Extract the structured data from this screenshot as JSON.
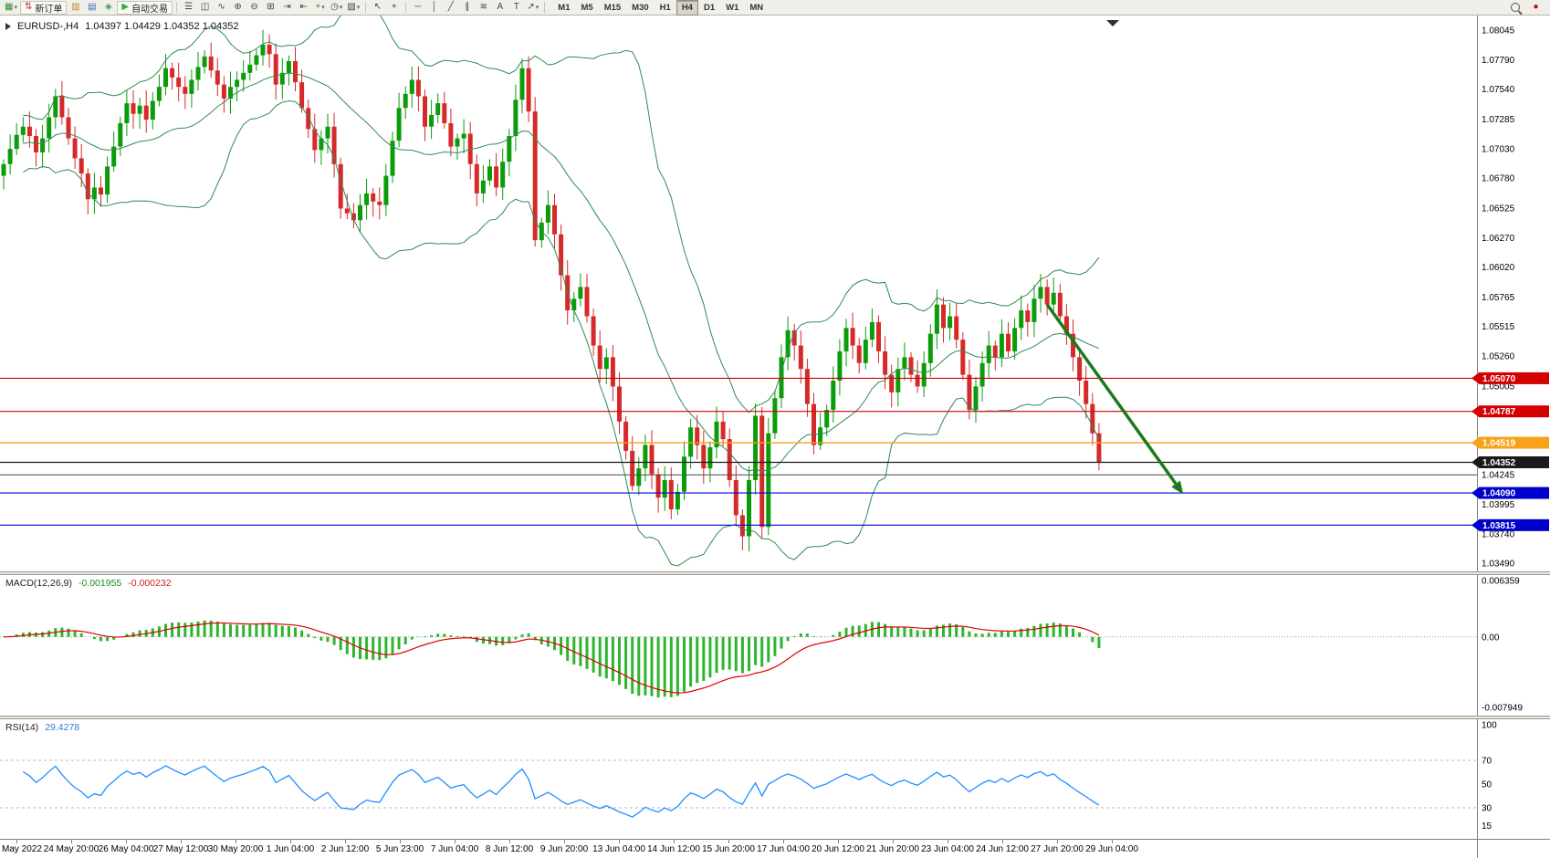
{
  "toolbar": {
    "items": [
      {
        "kind": "icon",
        "name": "new-chart",
        "glyph": "▦",
        "color": "#2f8f2f",
        "caret": true
      },
      {
        "kind": "button",
        "name": "new-order",
        "glyph": "⇅",
        "color": "#c23a3a",
        "label": "新订单"
      },
      {
        "kind": "icon",
        "name": "market-watch",
        "glyph": "▥",
        "color": "#b98a2e"
      },
      {
        "kind": "icon",
        "name": "data-window",
        "glyph": "▤",
        "color": "#3b6db3"
      },
      {
        "kind": "icon",
        "name": "navigator",
        "glyph": "◈",
        "color": "#2f9f5f"
      },
      {
        "kind": "button",
        "name": "autotrading",
        "glyph": "▶",
        "color": "#2fae2f",
        "label": "自动交易"
      },
      {
        "kind": "sep"
      },
      {
        "kind": "icon",
        "name": "bar-chart",
        "glyph": "☰",
        "color": "#444444"
      },
      {
        "kind": "icon",
        "name": "candlestick-chart",
        "glyph": "◫",
        "color": "#444444"
      },
      {
        "kind": "icon",
        "name": "line-chart",
        "glyph": "∿",
        "color": "#444444"
      },
      {
        "kind": "icon",
        "name": "zoom-in",
        "glyph": "⊕",
        "color": "#444444"
      },
      {
        "kind": "icon",
        "name": "zoom-out",
        "glyph": "⊖",
        "color": "#444444"
      },
      {
        "kind": "icon",
        "name": "tile-windows",
        "glyph": "⊞",
        "color": "#444444"
      },
      {
        "kind": "icon",
        "name": "auto-scroll",
        "glyph": "⇥",
        "color": "#444444"
      },
      {
        "kind": "icon",
        "name": "chart-shift",
        "glyph": "⇤",
        "color": "#444444"
      },
      {
        "kind": "icon",
        "name": "indicators",
        "glyph": "+",
        "color": "#2f8f2f",
        "caret": true
      },
      {
        "kind": "icon",
        "name": "periods",
        "glyph": "◷",
        "color": "#444444",
        "caret": true
      },
      {
        "kind": "icon",
        "name": "templates",
        "glyph": "▨",
        "color": "#444444",
        "caret": true
      },
      {
        "kind": "sep"
      },
      {
        "kind": "icon",
        "name": "cursor",
        "glyph": "↖",
        "color": "#444444"
      },
      {
        "kind": "icon",
        "name": "crosshair",
        "glyph": "+",
        "color": "#444444"
      },
      {
        "kind": "sep"
      },
      {
        "kind": "icon",
        "name": "horizontal-line",
        "glyph": "─",
        "color": "#444444"
      },
      {
        "kind": "icon",
        "name": "vertical-line",
        "glyph": "│",
        "color": "#444444"
      },
      {
        "kind": "icon",
        "name": "trendline",
        "glyph": "╱",
        "color": "#444444"
      },
      {
        "kind": "icon",
        "name": "equidistant-channel",
        "glyph": "∥",
        "color": "#444444"
      },
      {
        "kind": "icon",
        "name": "fibonacci",
        "glyph": "≋",
        "color": "#444444"
      },
      {
        "kind": "icon",
        "name": "text",
        "glyph": "A",
        "color": "#444444"
      },
      {
        "kind": "icon",
        "name": "text-label",
        "glyph": "T",
        "color": "#444444"
      },
      {
        "kind": "icon",
        "name": "arrows",
        "glyph": "↗",
        "color": "#444444",
        "caret": true
      },
      {
        "kind": "sep"
      }
    ],
    "timeframes": [
      "M1",
      "M5",
      "M15",
      "M30",
      "H1",
      "H4",
      "D1",
      "W1",
      "MN"
    ],
    "active_timeframe": "H4",
    "right_items": [
      {
        "kind": "search",
        "name": "search"
      },
      {
        "kind": "icon",
        "name": "alerts",
        "glyph": "●",
        "color": "#d40000"
      }
    ]
  },
  "chart_data": {
    "type": "candlestick",
    "symbol_title": "EURUSD-,H4",
    "ohlc_display": "1.04397 1.04429 1.04352 1.04352",
    "quote": {
      "open": "1.04397",
      "high": "1.04429",
      "low": "1.04352",
      "close": "1.04352"
    },
    "colors": {
      "up": "#0a9c0a",
      "down": "#d62a2a",
      "bollinger": "#2E8B57",
      "arrow": "#1c7a1c"
    },
    "y_axis": {
      "top_price": 1.08045,
      "bottom_price": 1.0349,
      "labels": [
        "1.08045",
        "1.07790",
        "1.07540",
        "1.07285",
        "1.07030",
        "1.06780",
        "1.06525",
        "1.06270",
        "1.06020",
        "1.05765",
        "1.05515",
        "1.05260",
        "1.05005",
        "1.04245",
        "1.03995",
        "1.03740",
        "1.03490"
      ]
    },
    "x_axis": {
      "labels": [
        "May 2022",
        "24 May 20:00",
        "26 May 04:00",
        "27 May 12:00",
        "30 May 20:00",
        "1 Jun 04:00",
        "2 Jun 12:00",
        "5 Jun 23:00",
        "7 Jun 04:00",
        "8 Jun 12:00",
        "9 Jun 20:00",
        "13 Jun 04:00",
        "14 Jun 12:00",
        "15 Jun 20:00",
        "17 Jun 04:00",
        "20 Jun 12:00",
        "21 Jun 20:00",
        "23 Jun 04:00",
        "24 Jun 12:00",
        "27 Jun 20:00",
        "29 Jun 04:00"
      ]
    },
    "candles": {
      "first_open": 1.068,
      "closes": [
        1.069,
        1.0703,
        1.0715,
        1.0722,
        1.0714,
        1.07,
        1.0712,
        1.073,
        1.0748,
        1.073,
        1.0712,
        1.0695,
        1.0682,
        1.066,
        1.067,
        1.0664,
        1.0688,
        1.0705,
        1.0725,
        1.0742,
        1.0733,
        1.074,
        1.0728,
        1.0744,
        1.0756,
        1.0772,
        1.0764,
        1.0756,
        1.075,
        1.0762,
        1.0773,
        1.0782,
        1.077,
        1.0758,
        1.0746,
        1.0756,
        1.0762,
        1.0768,
        1.0775,
        1.0783,
        1.0792,
        1.0784,
        1.0758,
        1.0768,
        1.0778,
        1.076,
        1.0738,
        1.072,
        1.0702,
        1.0712,
        1.0722,
        1.069,
        1.0652,
        1.0648,
        1.0642,
        1.0655,
        1.0665,
        1.0658,
        1.0655,
        1.068,
        1.071,
        1.0738,
        1.075,
        1.0762,
        1.0748,
        1.0722,
        1.0732,
        1.0742,
        1.0725,
        1.0705,
        1.0712,
        1.0716,
        1.069,
        1.0665,
        1.0676,
        1.0688,
        1.067,
        1.0692,
        1.0714,
        1.0745,
        1.0772,
        1.0735,
        1.0625,
        1.064,
        1.0655,
        1.063,
        1.0595,
        1.0565,
        1.0575,
        1.0585,
        1.056,
        1.0535,
        1.0515,
        1.0525,
        1.05,
        1.047,
        1.0445,
        1.0415,
        1.043,
        1.045,
        1.0425,
        1.0405,
        1.042,
        1.0395,
        1.041,
        1.044,
        1.0465,
        1.045,
        1.043,
        1.0448,
        1.047,
        1.0455,
        1.042,
        1.039,
        1.0372,
        1.042,
        1.0475,
        1.038,
        1.046,
        1.049,
        1.0525,
        1.0548,
        1.0535,
        1.0515,
        1.0485,
        1.045,
        1.0465,
        1.048,
        1.0505,
        1.053,
        1.055,
        1.0535,
        1.052,
        1.054,
        1.0555,
        1.053,
        1.051,
        1.0495,
        1.0515,
        1.0525,
        1.051,
        1.05,
        1.052,
        1.0545,
        1.057,
        1.055,
        1.056,
        1.054,
        1.051,
        1.048,
        1.05,
        1.052,
        1.0535,
        1.0525,
        1.0545,
        1.053,
        1.055,
        1.0565,
        1.0555,
        1.0575,
        1.0585,
        1.057,
        1.058,
        1.056,
        1.0545,
        1.0525,
        1.0505,
        1.0485,
        1.046,
        1.04352
      ]
    },
    "levels": [
      {
        "price": 1.0507,
        "color": "#d40000",
        "width": 1.2,
        "badge": "1.05070",
        "badge_bg": "#d40000"
      },
      {
        "price": 1.04787,
        "color": "#d40000",
        "width": 1.2,
        "badge": "1.04787",
        "badge_bg": "#d40000"
      },
      {
        "price": 1.04519,
        "color": "#f7a21b",
        "width": 1.4,
        "badge": "1.04519",
        "badge_bg": "#f7a21b"
      },
      {
        "price": 1.04352,
        "color": "#1a1a1a",
        "width": 1.2,
        "badge": "1.04352",
        "badge_bg": "#1a1a1a"
      },
      {
        "price": 1.04245,
        "color": "#4a4a4a",
        "width": 1,
        "badge": null
      },
      {
        "price": 1.0409,
        "color": "#0000dd",
        "width": 1.2,
        "badge": "1.04090",
        "badge_bg": "#0000cc"
      },
      {
        "price": 1.03815,
        "color": "#0000dd",
        "width": 1.2,
        "badge": "1.03815",
        "badge_bg": "#0000cc"
      }
    ],
    "arrow": {
      "from_bar": 161,
      "from_price": 1.057,
      "to_bar": 182,
      "to_price": 1.0408
    },
    "indicators": {
      "bollinger": {
        "period": 20,
        "deviation": 2
      },
      "macd": {
        "label": "MACD(12,26,9)",
        "value_main": "-0.001955",
        "value_signal": "-0.000232",
        "axis": [
          {
            "text": "0.006359",
            "v": 0.006359
          },
          {
            "text": "0.00",
            "v": 0
          },
          {
            "text": "-0.007949",
            "v": -0.007949
          }
        ],
        "colors": {
          "histogram": "#2eb52e",
          "signal": "#e00000"
        }
      },
      "rsi": {
        "label": "RSI(14)",
        "value": "29.4278",
        "color": "#1E90FF",
        "axis": [
          {
            "text": "100",
            "v": 100
          },
          {
            "text": "70",
            "v": 70
          },
          {
            "text": "50",
            "v": 50
          },
          {
            "text": "30",
            "v": 30
          },
          {
            "text": "15",
            "v": 15
          }
        ],
        "levels": [
          70,
          30
        ]
      }
    }
  }
}
